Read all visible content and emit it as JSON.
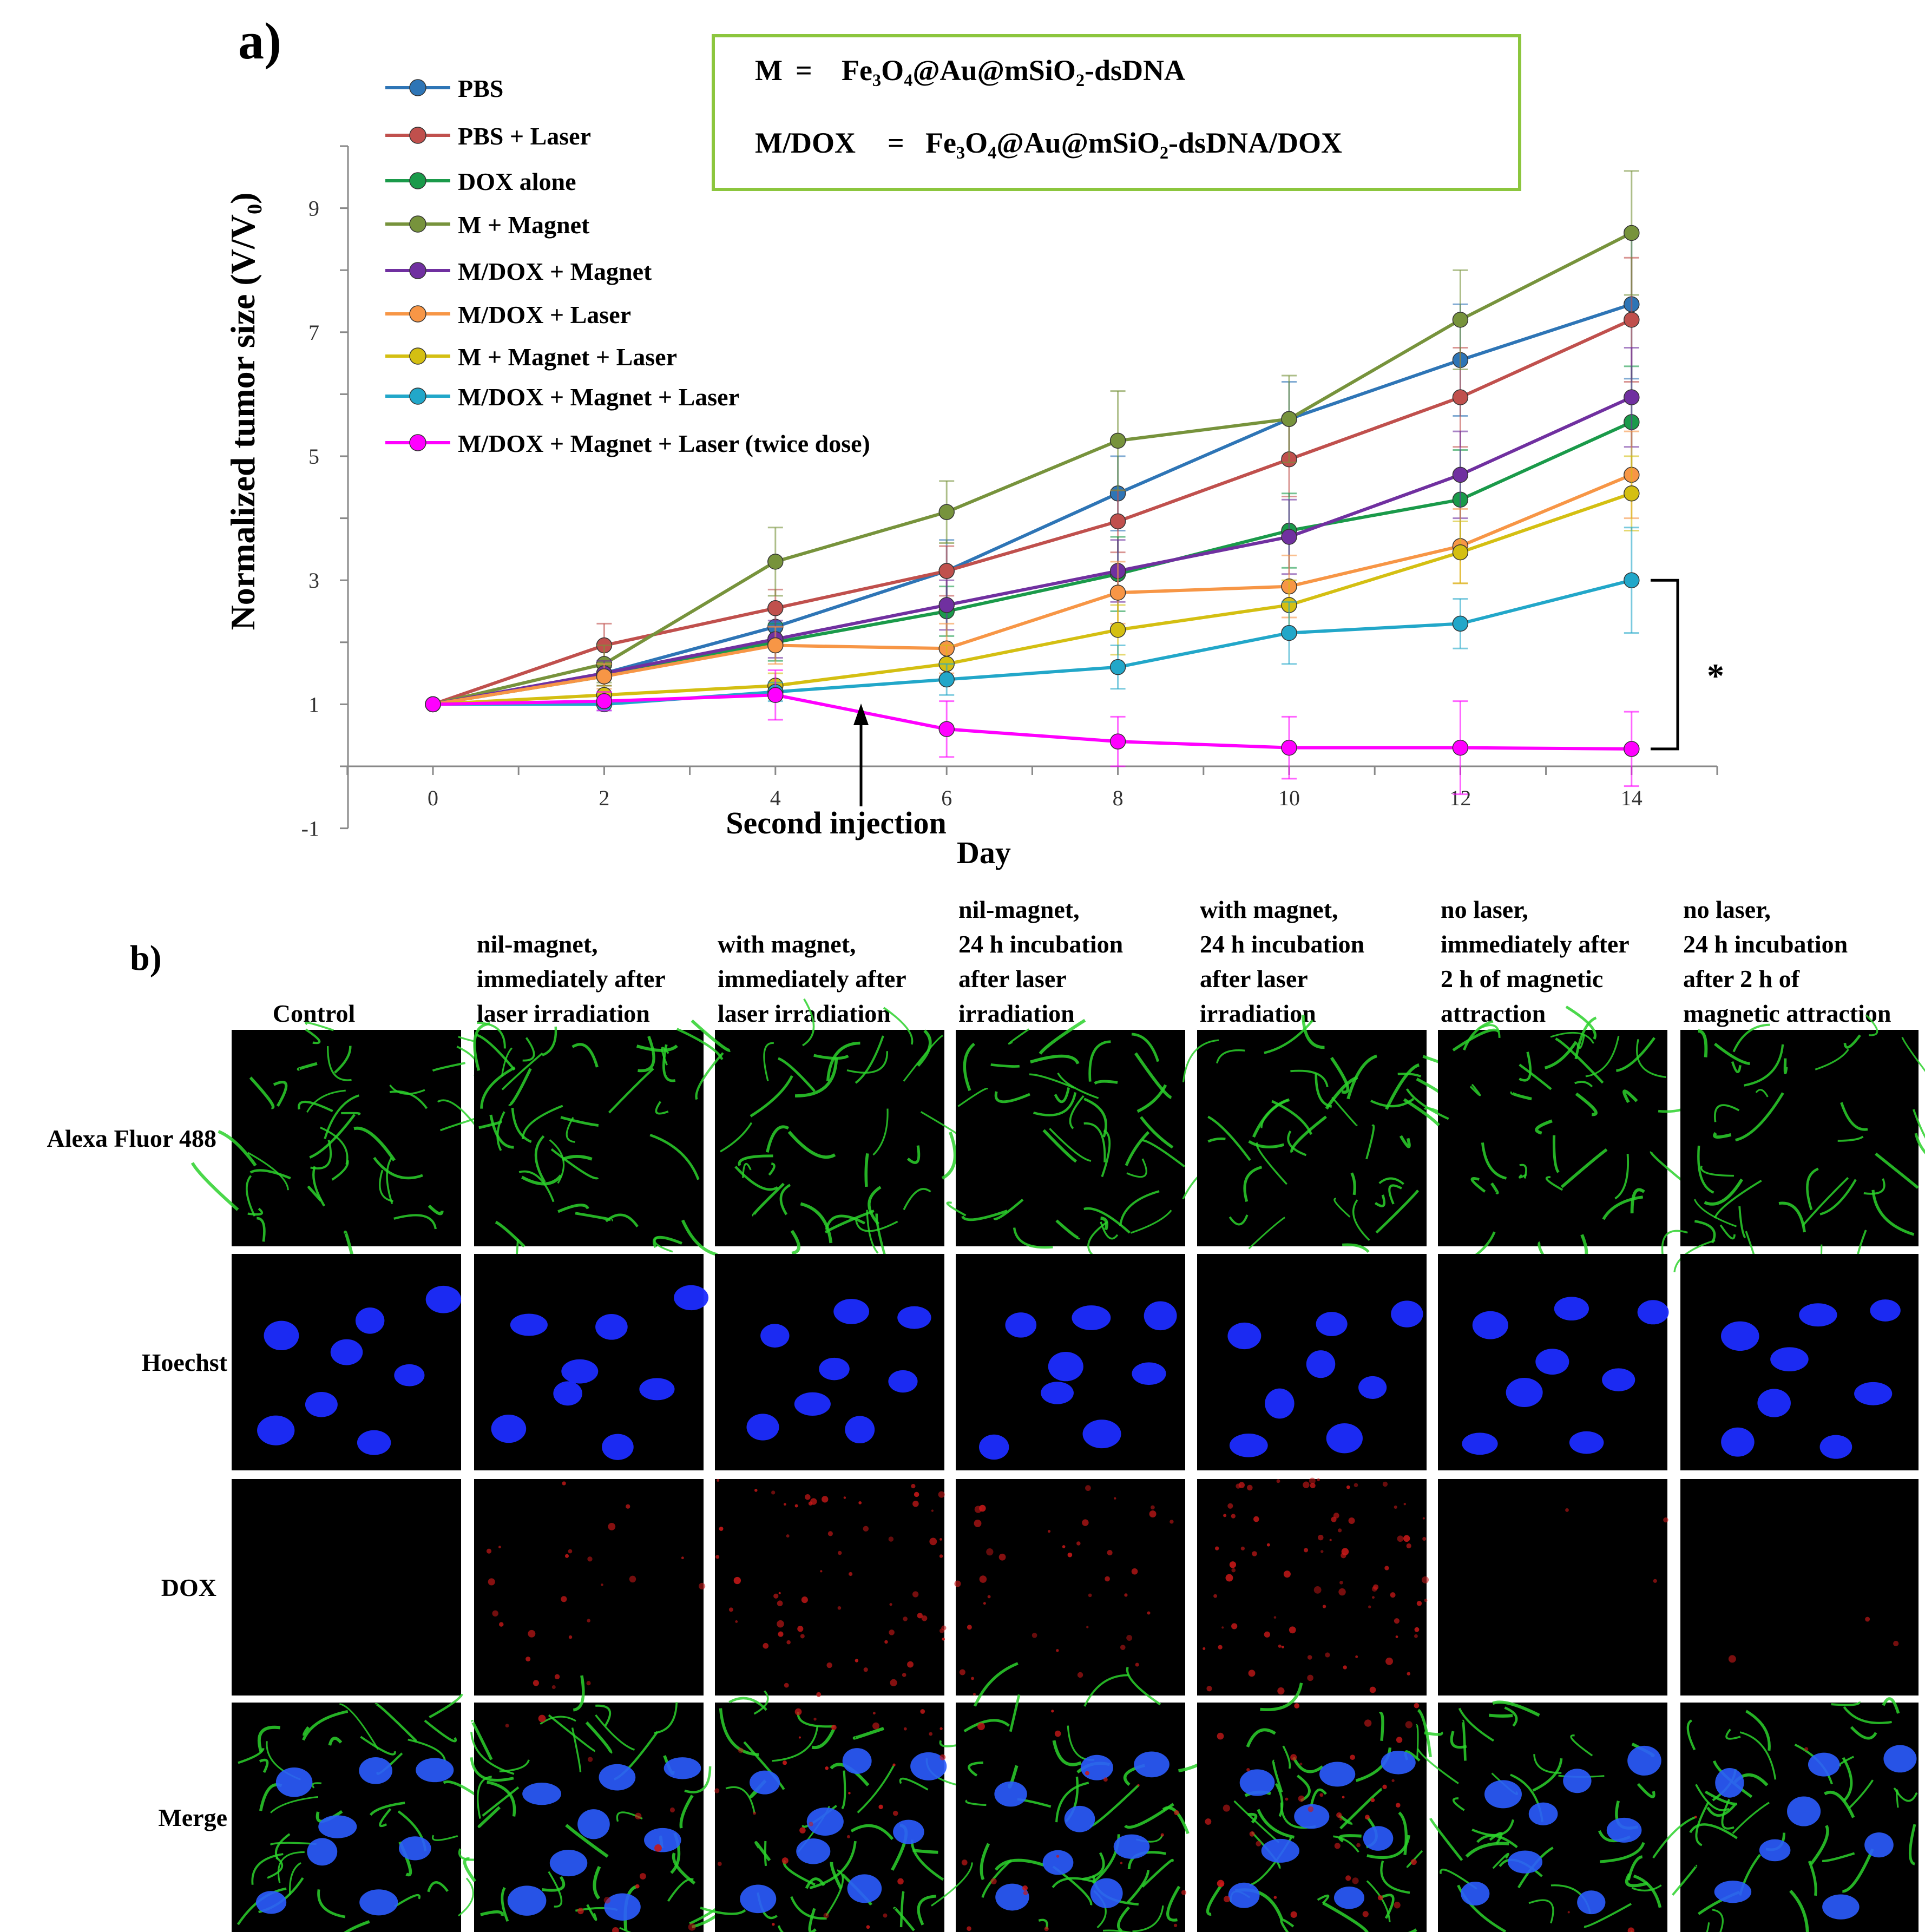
{
  "panel_a_label": "a)",
  "panel_b_label": "b)",
  "definitions": {
    "line1_m": "M",
    "line1_eq": "=",
    "line1_formula": "Fe₃O₄@Au@mSiO₂-dsDNA",
    "line2_m": "M/DOX",
    "line2_eq": "=",
    "line2_formula": "Fe₃O₄@Au@mSiO₂-dsDNA/DOX",
    "box_color": "#8cc63e"
  },
  "annotations": {
    "arrow_label": "Second injection",
    "arrow_day": 5,
    "significance": "*"
  },
  "chart_data": {
    "type": "line",
    "xlabel": "Day",
    "ylabel": "Normalized tumor size (V/V₀)",
    "x": [
      0,
      2,
      4,
      6,
      8,
      10,
      12,
      14
    ],
    "xticks": [
      0,
      2,
      4,
      6,
      8,
      10,
      12,
      14
    ],
    "yticks": [
      -1,
      1,
      3,
      5,
      7,
      9
    ],
    "xlim": [
      -2,
      15
    ],
    "ylim": [
      -1,
      10
    ],
    "grid": false,
    "legend": "top-left",
    "series": [
      {
        "name": "PBS",
        "color": "#2e75b6",
        "values": [
          1,
          1.5,
          2.25,
          3.15,
          4.4,
          5.6,
          6.55,
          7.45
        ],
        "errors": [
          0,
          0.2,
          0.3,
          0.5,
          0.6,
          0.6,
          0.9,
          1.2
        ]
      },
      {
        "name": "PBS + Laser",
        "color": "#c0504d",
        "values": [
          1,
          1.95,
          2.55,
          3.15,
          3.95,
          4.95,
          5.95,
          7.2
        ],
        "errors": [
          0,
          0.35,
          0.3,
          0.4,
          0.5,
          0.6,
          0.8,
          1.0
        ]
      },
      {
        "name": "DOX alone",
        "color": "#1a9a4a",
        "values": [
          1,
          1.45,
          2.0,
          2.5,
          3.1,
          3.8,
          4.3,
          5.55
        ],
        "errors": [
          0,
          0.15,
          0.3,
          0.4,
          0.6,
          0.6,
          0.8,
          0.9
        ]
      },
      {
        "name": "M + Magnet",
        "color": "#77933c",
        "values": [
          1,
          1.65,
          3.3,
          4.1,
          5.25,
          5.6,
          7.2,
          8.6
        ],
        "errors": [
          0,
          0.3,
          0.55,
          0.5,
          0.8,
          0.7,
          0.8,
          1.0
        ]
      },
      {
        "name": "M/DOX + Magnet",
        "color": "#7030a0",
        "values": [
          1,
          1.5,
          2.05,
          2.6,
          3.15,
          3.7,
          4.7,
          5.95
        ],
        "errors": [
          0,
          0.2,
          0.3,
          0.4,
          0.5,
          0.6,
          0.7,
          0.8
        ]
      },
      {
        "name": "M/DOX + Laser",
        "color": "#f79646",
        "values": [
          1,
          1.45,
          1.95,
          1.9,
          2.8,
          2.9,
          3.55,
          4.7
        ],
        "errors": [
          0,
          0.2,
          0.3,
          0.4,
          0.5,
          0.5,
          0.6,
          0.7
        ]
      },
      {
        "name": "M + Magnet + Laser",
        "color": "#d4bf12",
        "values": [
          1,
          1.15,
          1.3,
          1.65,
          2.2,
          2.6,
          3.45,
          4.4
        ],
        "errors": [
          0,
          0.15,
          0.2,
          0.3,
          0.4,
          0.4,
          0.5,
          0.6
        ]
      },
      {
        "name": "M/DOX + Magnet + Laser",
        "color": "#22a7c9",
        "values": [
          1,
          1.0,
          1.2,
          1.4,
          1.6,
          2.15,
          2.3,
          3.0
        ],
        "errors": [
          0,
          0.1,
          0.15,
          0.25,
          0.35,
          0.5,
          0.4,
          0.85
        ]
      },
      {
        "name": "M/DOX + Magnet + Laser (twice dose)",
        "color": "#ff00ff",
        "values": [
          1,
          1.05,
          1.15,
          0.6,
          0.4,
          0.3,
          0.3,
          0.28
        ],
        "errors": [
          0,
          0.15,
          0.4,
          0.45,
          0.4,
          0.5,
          0.75,
          0.6
        ]
      }
    ]
  },
  "microscopy": {
    "columns": [
      [
        "Control"
      ],
      [
        "nil-magnet,",
        "immediately after",
        "laser irradiation"
      ],
      [
        "with magnet,",
        "immediately after",
        "laser irradiation"
      ],
      [
        "nil-magnet,",
        "24 h incubation",
        "after laser",
        "irradiation"
      ],
      [
        "with magnet,",
        "24 h incubation",
        "after laser",
        "irradiation"
      ],
      [
        "no laser,",
        "immediately after",
        "2 h of magnetic",
        "attraction"
      ],
      [
        "no laser,",
        "24 h incubation",
        "after 2 h of",
        "magnetic attraction"
      ]
    ],
    "rows": [
      "Alexa Fluor 488",
      "Hoechst",
      "DOX",
      "Merge"
    ]
  }
}
